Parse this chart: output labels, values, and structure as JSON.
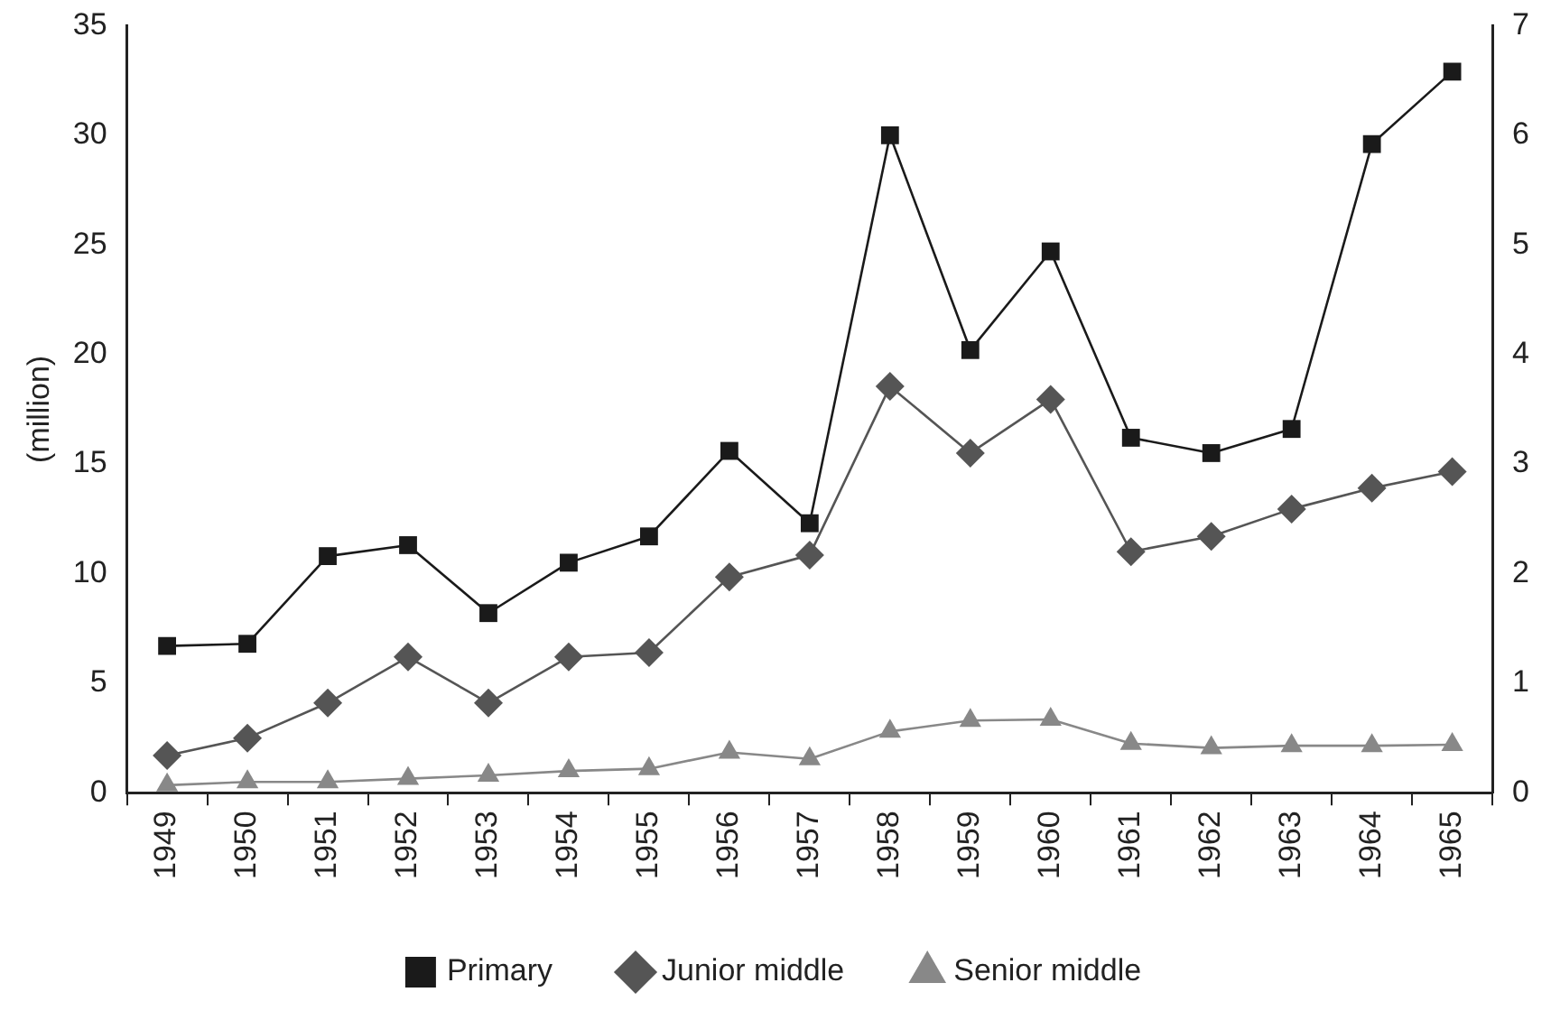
{
  "chart_data": {
    "type": "line",
    "ylabel": "(million)",
    "categories": [
      "1949",
      "1950",
      "1951",
      "1952",
      "1953",
      "1954",
      "1955",
      "1956",
      "1957",
      "1958",
      "1959",
      "1960",
      "1961",
      "1962",
      "1963",
      "1964",
      "1965"
    ],
    "series": [
      {
        "name": "Primary",
        "color": "#1a1a1a",
        "marker": "square",
        "values": [
          6.7,
          6.8,
          10.8,
          11.3,
          8.2,
          10.5,
          11.7,
          15.6,
          12.3,
          30.0,
          20.2,
          24.7,
          16.2,
          15.5,
          16.6,
          29.6,
          32.9
        ]
      },
      {
        "name": "Junior middle",
        "color": "#555555",
        "marker": "diamond",
        "axis": "y2",
        "values": [
          0.34,
          0.5,
          0.82,
          1.24,
          0.82,
          1.24,
          1.28,
          1.97,
          2.17,
          3.71,
          3.1,
          3.59,
          2.2,
          2.34,
          2.59,
          2.78,
          2.93
        ]
      },
      {
        "name": "Senior middle",
        "color": "#888888",
        "marker": "triangle",
        "axis": "y2",
        "values": [
          0.07,
          0.1,
          0.1,
          0.13,
          0.16,
          0.2,
          0.22,
          0.37,
          0.31,
          0.56,
          0.66,
          0.67,
          0.45,
          0.41,
          0.43,
          0.43,
          0.44
        ]
      }
    ],
    "ylim": [
      0,
      35
    ],
    "yticks": [
      0,
      5,
      10,
      15,
      20,
      25,
      30,
      35
    ],
    "y2lim": [
      0,
      7
    ],
    "y2ticks": [
      0,
      1,
      2,
      3,
      4,
      5,
      6,
      7
    ],
    "grid": false,
    "legend": "bottom",
    "line_style": "solid"
  }
}
